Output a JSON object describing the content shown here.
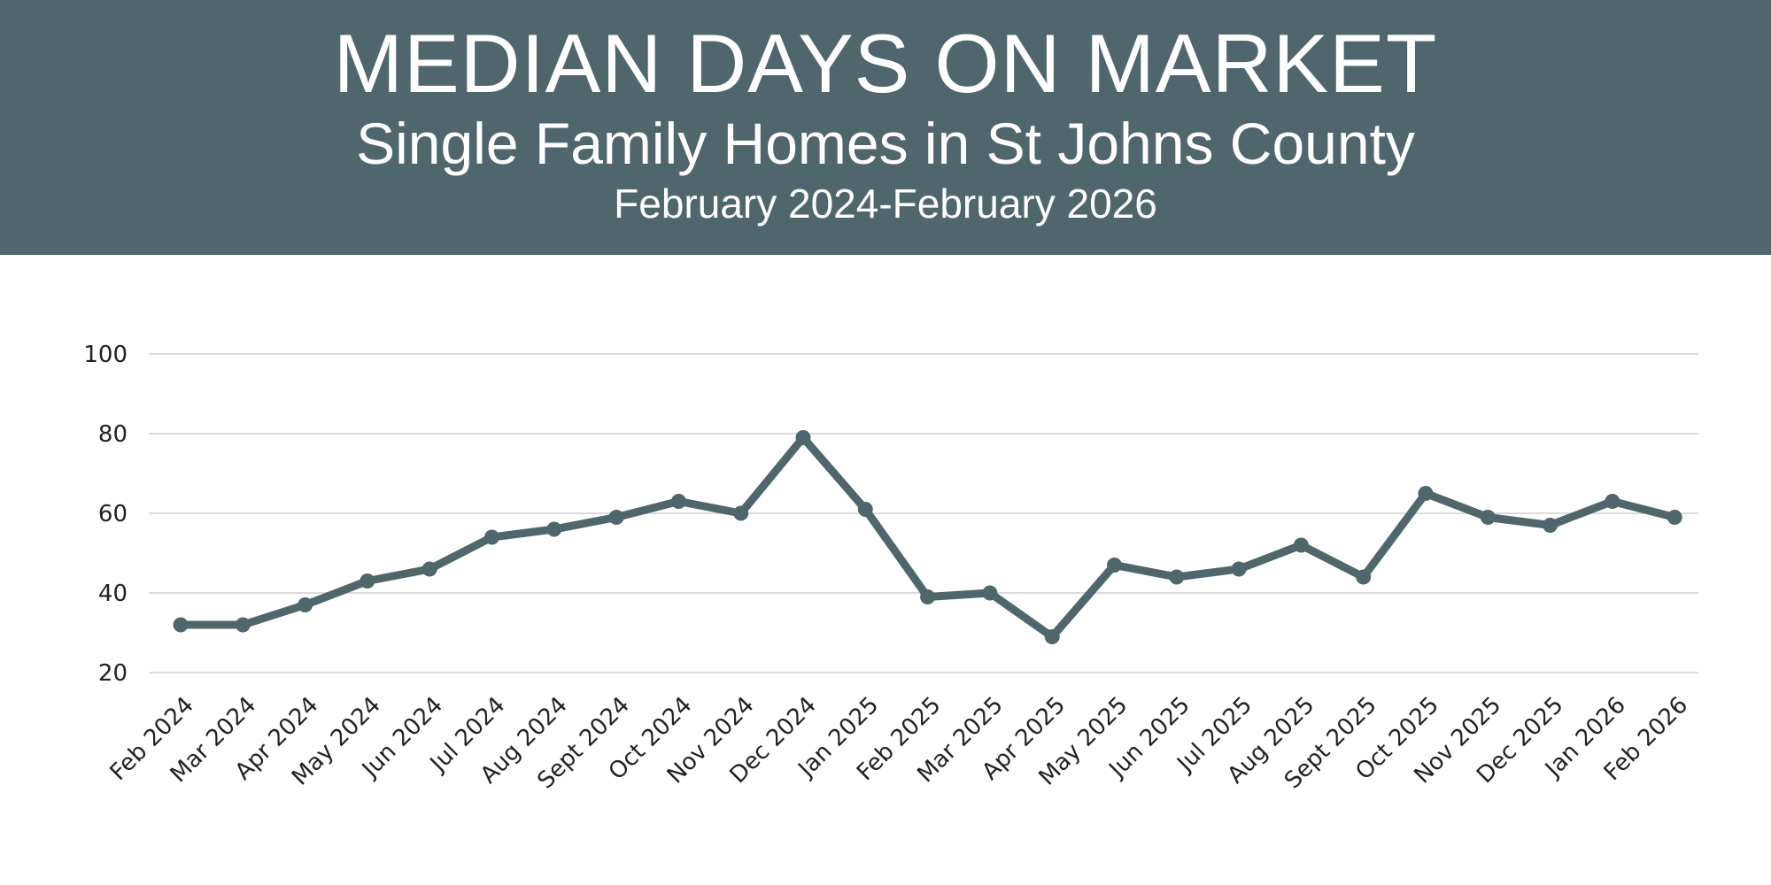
{
  "header": {
    "title": "MEDIAN DAYS ON MARKET",
    "subtitle": "Single Family Homes in St Johns County",
    "date_range": "February 2024-February 2026"
  },
  "colors": {
    "banner": "#4f666d",
    "series": "#4f666d",
    "grid": "#d0d0d0"
  },
  "chart_data": {
    "type": "line",
    "title": "MEDIAN DAYS ON MARKET",
    "subtitle": "Single Family Homes in St Johns County",
    "xlabel": "",
    "ylabel": "",
    "ylim": [
      20,
      100
    ],
    "yticks": [
      20,
      40,
      60,
      80,
      100
    ],
    "grid": true,
    "legend": "none",
    "categories": [
      "Feb 2024",
      "Mar 2024",
      "Apr 2024",
      "May 2024",
      "Jun 2024",
      "Jul 2024",
      "Aug 2024",
      "Sept 2024",
      "Oct 2024",
      "Nov 2024",
      "Dec 2024",
      "Jan 2025",
      "Feb 2025",
      "Mar 2025",
      "Apr 2025",
      "May 2025",
      "Jun 2025",
      "Jul 2025",
      "Aug 2025",
      "Sept 2025",
      "Oct 2025",
      "Nov 2025",
      "Dec 2025",
      "Jan 2026",
      "Feb 2026"
    ],
    "series": [
      {
        "values": [
          32,
          32,
          37,
          43,
          46,
          54,
          56,
          59,
          63,
          60,
          79,
          61,
          39,
          40,
          29,
          47,
          44,
          46,
          52,
          44,
          65,
          59,
          57,
          63,
          59
        ]
      }
    ]
  }
}
